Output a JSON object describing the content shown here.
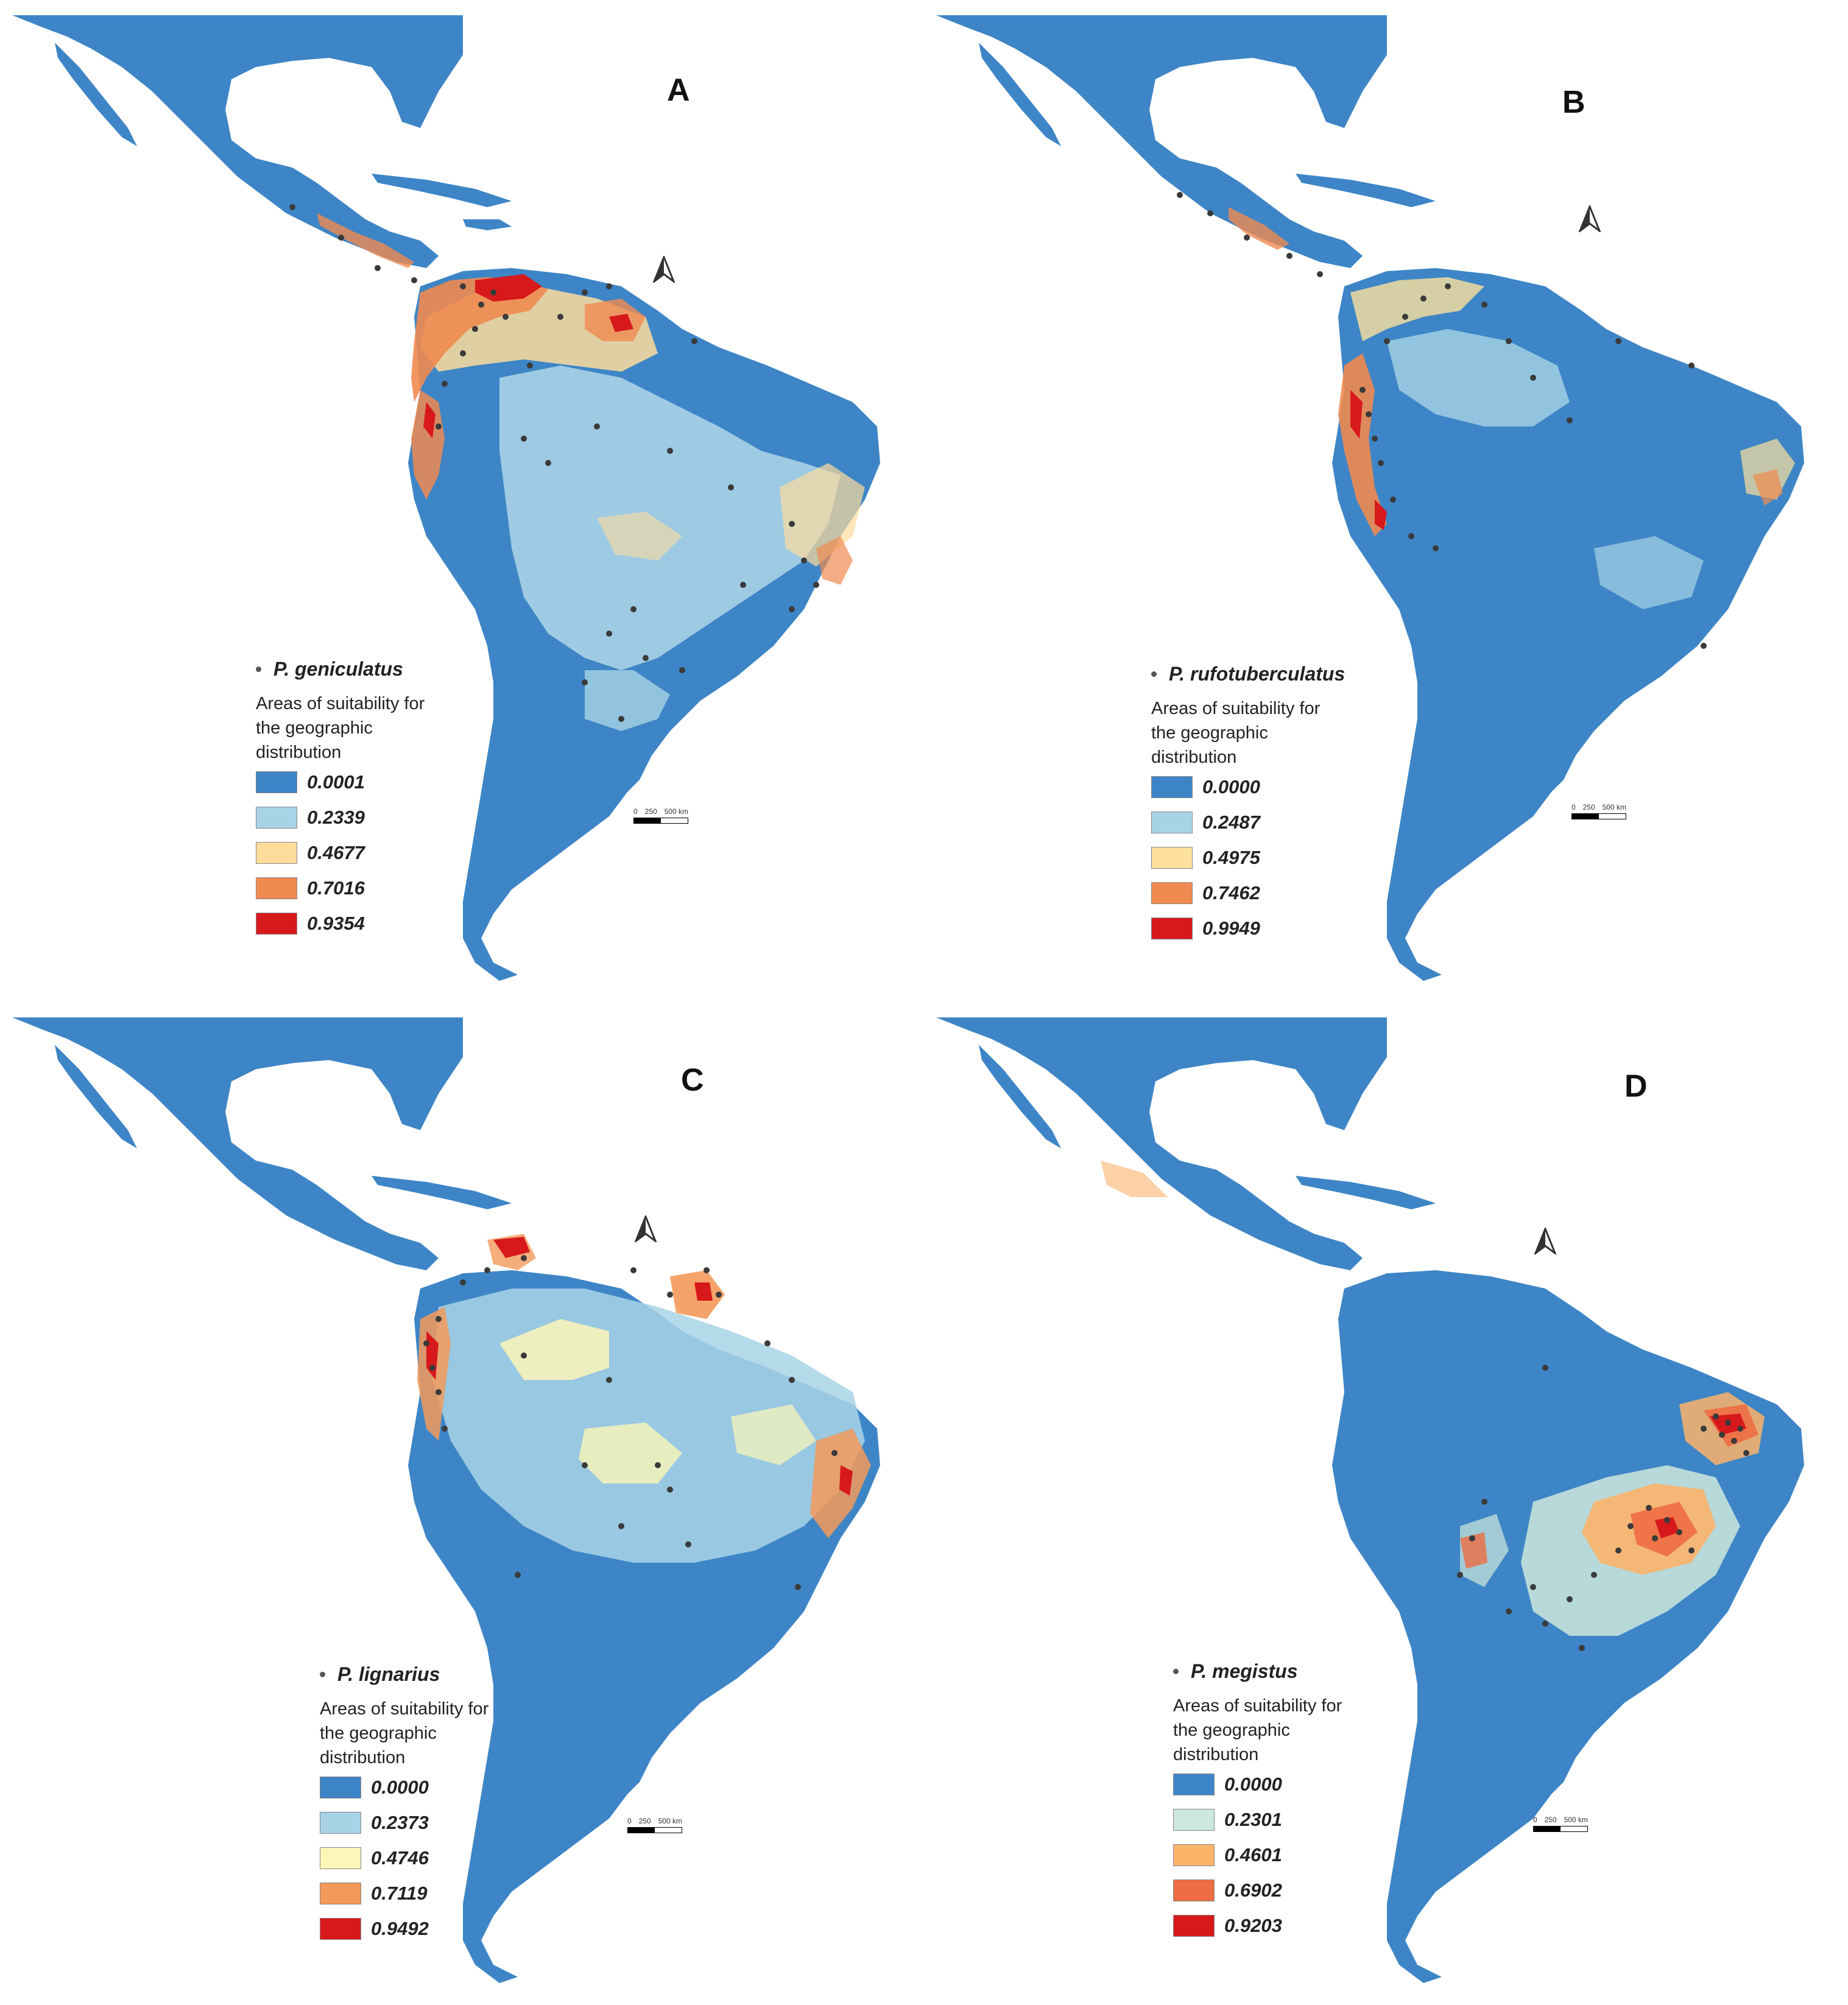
{
  "colors": {
    "water": "#ffffff",
    "land_base": "#3d85c6",
    "light_blue": "#a8d3e6",
    "pale_yellow": "#fbe39a",
    "orange": "#f08a50",
    "red": "#d7191c",
    "dot": "#3a3a3a"
  },
  "legend_title": "Areas of suitability for the geographic distribution",
  "scale": {
    "zero": "0",
    "mid": "250",
    "max": "500 km"
  },
  "panels": [
    {
      "id": "a",
      "letter": "A",
      "species": "P. geniculatus",
      "legend_title": "Areas of suitability for the geographic distribution",
      "classes": [
        {
          "value": "0.0001",
          "color": "#3d85c6"
        },
        {
          "value": "0.2339",
          "color": "#a8d3e6"
        },
        {
          "value": "0.4677",
          "color": "#fddc9c"
        },
        {
          "value": "0.7016",
          "color": "#f08a50"
        },
        {
          "value": "0.9354",
          "color": "#d7191c"
        }
      ]
    },
    {
      "id": "b",
      "letter": "B",
      "species": "P. rufotuberculatus",
      "legend_title": "Areas of suitability for the geographic distribution",
      "classes": [
        {
          "value": "0.0000",
          "color": "#3d85c6"
        },
        {
          "value": "0.2487",
          "color": "#a8d3e6"
        },
        {
          "value": "0.4975",
          "color": "#fde19c"
        },
        {
          "value": "0.7462",
          "color": "#f08a50"
        },
        {
          "value": "0.9949",
          "color": "#d7191c"
        }
      ]
    },
    {
      "id": "c",
      "letter": "C",
      "species": "P. lignarius",
      "legend_title": "Areas of suitability for the geographic distribution",
      "classes": [
        {
          "value": "0.0000",
          "color": "#3d85c6"
        },
        {
          "value": "0.2373",
          "color": "#a8d3e6"
        },
        {
          "value": "0.4746",
          "color": "#fdf6b8"
        },
        {
          "value": "0.7119",
          "color": "#f39a5a"
        },
        {
          "value": "0.9492",
          "color": "#d7191c"
        }
      ]
    },
    {
      "id": "d",
      "letter": "D",
      "species": "P. megistus",
      "legend_title": "Areas of suitability for the geographic distribution",
      "classes": [
        {
          "value": "0.0000",
          "color": "#3d85c6"
        },
        {
          "value": "0.2301",
          "color": "#cde8dc"
        },
        {
          "value": "0.4601",
          "color": "#fbb36a"
        },
        {
          "value": "0.6902",
          "color": "#ee6d42"
        },
        {
          "value": "0.9203",
          "color": "#d7191c"
        }
      ]
    }
  ]
}
